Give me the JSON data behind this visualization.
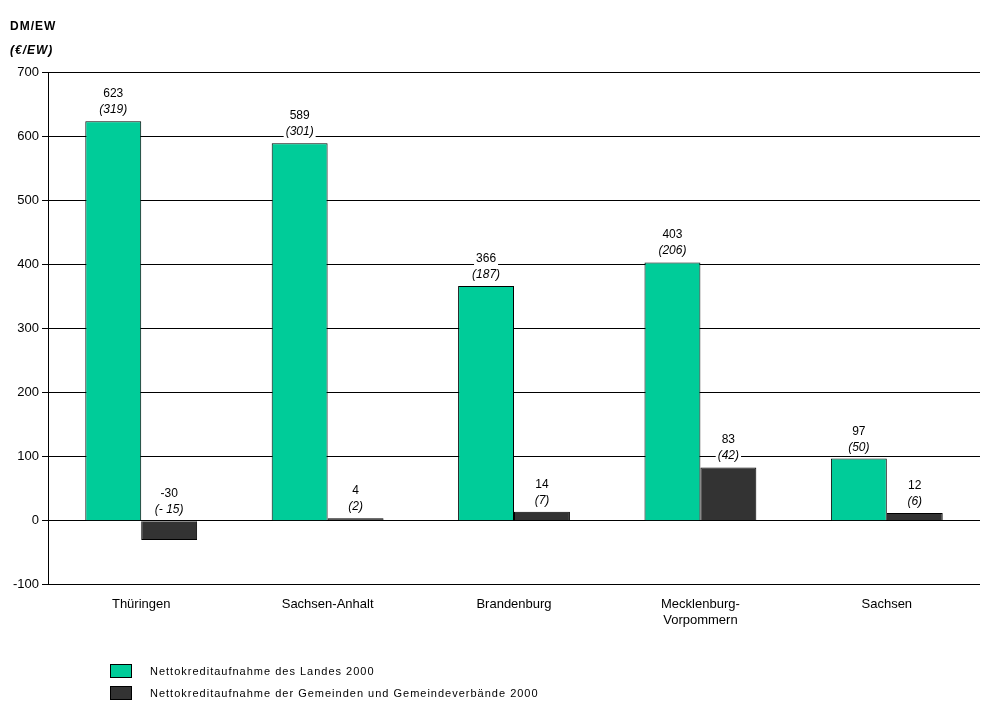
{
  "chart_data": {
    "type": "bar",
    "ylabel": "DM/EW (€/EW)",
    "categories": [
      "Thüringen",
      "Sachsen-Anhalt",
      "Brandenburg",
      "Mecklenburg-Vorpommern",
      "Sachsen"
    ],
    "series": [
      {
        "name": "Nettokreditaufnahme des Landes 2000",
        "color": "#00cc99",
        "values": [
          623,
          589,
          366,
          403,
          97
        ],
        "value_labels": [
          "623 (319)",
          "589 (301)",
          "366 (187)",
          "403 (206)",
          "97 (50)"
        ]
      },
      {
        "name": "Nettokreditaufnahme der Gemeinden und Gemeindeverbände 2000",
        "color": "#333333",
        "values": [
          -30,
          4,
          14,
          83,
          12
        ],
        "value_labels": [
          "-30 (- 15)",
          "4 (2)",
          "14 (7)",
          "83 (42)",
          "12 (6)"
        ]
      }
    ],
    "ylim": [
      -100,
      700
    ],
    "yticks": [
      -100,
      0,
      100,
      200,
      300,
      400,
      500,
      600,
      700
    ],
    "grid": "y",
    "legend": "bottom"
  }
}
